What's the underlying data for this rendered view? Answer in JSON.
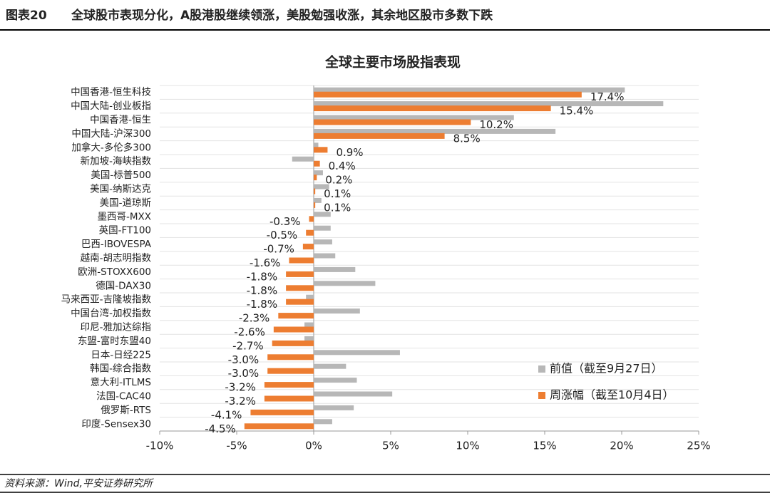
{
  "header": {
    "label": "图表20",
    "title": "全球股市表现分化，A股港股继续领涨，美股勉强收涨，其余地区股市多数下跌"
  },
  "footer": {
    "source": "资料来源：Wind,平安证券研究所"
  },
  "chart_data": {
    "type": "bar",
    "orientation": "horizontal",
    "title": "全球主要市场股指表现",
    "categories": [
      "中国香港-恒生科技",
      "中国大陆-创业板指",
      "中国香港-恒生",
      "中国大陆-沪深300",
      "加拿大-多伦多300",
      "新加坡-海峡指数",
      "美国-标普500",
      "美国-纳斯达克",
      "美国-道琼斯",
      "墨西哥-MXX",
      "英国-FT100",
      "巴西-IBOVESPA",
      "越南-胡志明指数",
      "欧洲-STOXX600",
      "德国-DAX30",
      "马来西亚-吉隆坡指数",
      "中国台湾-加权指数",
      "印尼-雅加达综指",
      "东盟-富时东盟40",
      "日本-日经225",
      "韩国-综合指数",
      "意大利-ITLMS",
      "法国-CAC40",
      "俄罗斯-RTS",
      "印度-Sensex30"
    ],
    "series": [
      {
        "name": "前值（截至9月27日）",
        "color": "#b7b7b7",
        "values": [
          20.2,
          22.7,
          13.0,
          15.7,
          0.3,
          -1.4,
          0.6,
          1.0,
          0.5,
          1.1,
          1.1,
          1.2,
          1.4,
          2.7,
          4.0,
          -0.5,
          3.0,
          -0.6,
          -0.6,
          5.6,
          2.1,
          2.8,
          5.1,
          2.6,
          1.2
        ]
      },
      {
        "name": "周涨幅（截至10月4日）",
        "color": "#ed7d31",
        "values": [
          17.4,
          15.4,
          10.2,
          8.5,
          0.9,
          0.4,
          0.2,
          0.1,
          0.1,
          -0.3,
          -0.5,
          -0.7,
          -1.6,
          -1.8,
          -1.8,
          -1.8,
          -2.3,
          -2.6,
          -2.7,
          -3.0,
          -3.0,
          -3.2,
          -3.2,
          -4.1,
          -4.5
        ],
        "value_labels": [
          "17.4%",
          "15.4%",
          "10.2%",
          "8.5%",
          "0.9%",
          "0.4%",
          "0.2%",
          "0.1%",
          "0.1%",
          "-0.3%",
          "-0.5%",
          "-0.7%",
          "-1.6%",
          "-1.8%",
          "-1.8%",
          "-1.8%",
          "-2.3%",
          "-2.6%",
          "-2.7%",
          "-3.0%",
          "-3.0%",
          "-3.2%",
          "-3.2%",
          "-4.1%",
          "-4.5%"
        ]
      }
    ],
    "xlim": [
      -10,
      25
    ],
    "xticks": [
      {
        "value": -10,
        "label": "-10%"
      },
      {
        "value": -5,
        "label": "-5%"
      },
      {
        "value": 0,
        "label": "0%"
      },
      {
        "value": 5,
        "label": "5%"
      },
      {
        "value": 10,
        "label": "10%"
      },
      {
        "value": 15,
        "label": "15%"
      },
      {
        "value": 20,
        "label": "20%"
      },
      {
        "value": 25,
        "label": "25%"
      }
    ],
    "grid": true,
    "legend": "lower right"
  }
}
